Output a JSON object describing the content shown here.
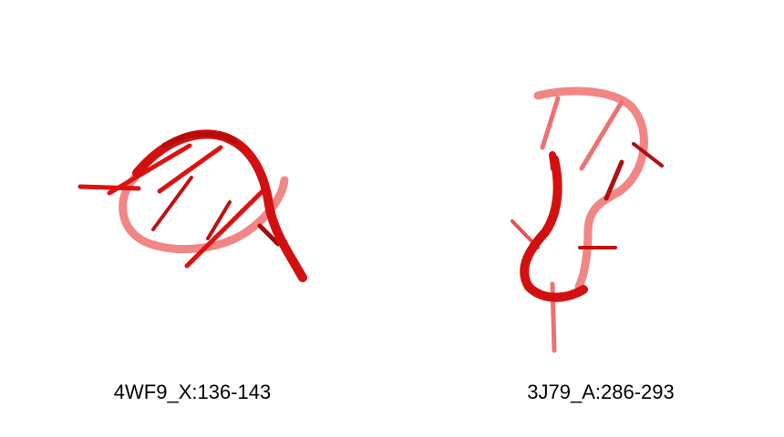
{
  "figures": [
    {
      "label": "4WF9_X:136-143",
      "color": "#e01010"
    },
    {
      "label": "3J79_A:286-293",
      "color": "#e01010"
    }
  ]
}
